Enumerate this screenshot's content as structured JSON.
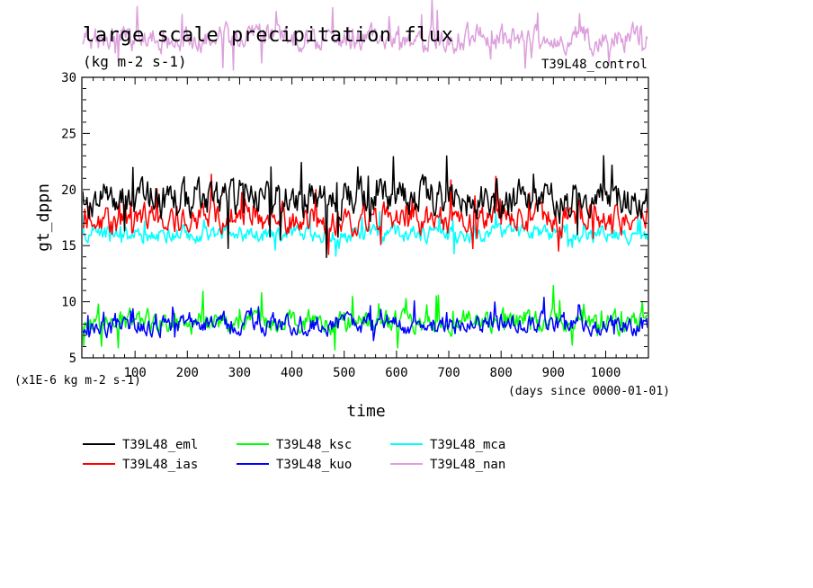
{
  "chart_data": {
    "type": "line",
    "title": "large scale precipitation flux",
    "subtitle": "(kg m-2 s-1)",
    "run_label": "T39L48_control",
    "xlabel": "time",
    "ylabel": "gt_dppn",
    "y_unit_note": "(x1E-6 kg m-2 s-1)",
    "x_unit_note": "(days since 0000-01-01)",
    "xlim": [
      0,
      1080
    ],
    "ylim": [
      5,
      30
    ],
    "x_ticks": [
      100,
      200,
      300,
      400,
      500,
      600,
      700,
      800,
      900,
      1000
    ],
    "y_ticks": [
      5,
      10,
      15,
      20,
      25,
      30
    ],
    "grid": false,
    "legend_position": "bottom",
    "series": [
      {
        "name": "T39L48_eml",
        "color": "#000000",
        "mean": 19.2,
        "amplitude": 1.3,
        "spike": 2.6,
        "seed": 11
      },
      {
        "name": "T39L48_ias",
        "color": "#ff0000",
        "mean": 17.4,
        "amplitude": 1.0,
        "spike": 1.6,
        "seed": 23
      },
      {
        "name": "T39L48_ksc",
        "color": "#00ff00",
        "mean": 8.2,
        "amplitude": 0.8,
        "spike": 1.4,
        "seed": 37
      },
      {
        "name": "T39L48_mca",
        "color": "#00ffff",
        "mean": 16.0,
        "amplitude": 0.6,
        "spike": 1.2,
        "seed": 41
      },
      {
        "name": "T39L48_kuo",
        "color": "#0000ff",
        "mean": 8.0,
        "amplitude": 0.7,
        "spike": 1.1,
        "seed": 53
      },
      {
        "name": "T39L48_nan",
        "color": "#dda0dd",
        "mean": 33.5,
        "amplitude": 0.9,
        "spike": 1.6,
        "seed": 67
      }
    ]
  },
  "legend_rows": [
    [
      "T39L48_eml",
      "T39L48_ksc",
      "T39L48_mca"
    ],
    [
      "T39L48_ias",
      "T39L48_kuo",
      "T39L48_nan"
    ]
  ]
}
